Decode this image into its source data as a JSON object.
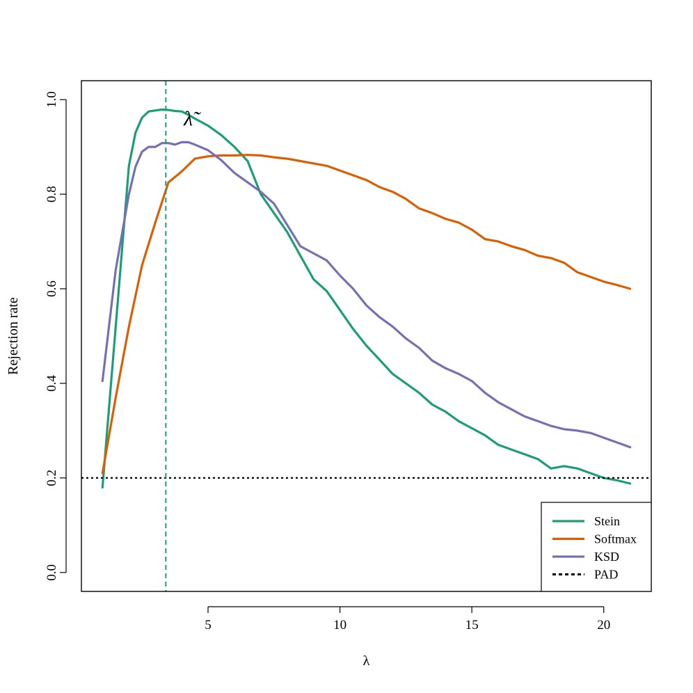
{
  "chart_data": {
    "type": "line",
    "title": "",
    "xlabel": "λ",
    "ylabel": "Rejection rate",
    "xlim": [
      0.2,
      21.8
    ],
    "ylim": [
      -0.04,
      1.04
    ],
    "xticks": [
      5,
      10,
      15,
      20
    ],
    "yticks": [
      0.0,
      0.2,
      0.4,
      0.6,
      0.8,
      1.0
    ],
    "xtick_labels": [
      "5",
      "10",
      "15",
      "20"
    ],
    "ytick_labels": [
      "0.0",
      "0.2",
      "0.4",
      "0.6",
      "0.8",
      "1.0"
    ],
    "grid": false,
    "legend_position": "bottom-right",
    "colors": {
      "Stein": "#1b9e77",
      "Softmax": "#d95f02",
      "KSD": "#7570b3",
      "PAD": "#000000"
    },
    "series": [
      {
        "name": "Stein",
        "x": [
          1.0,
          1.5,
          2.0,
          2.25,
          2.5,
          2.75,
          3.0,
          3.25,
          3.5,
          3.75,
          4.0,
          4.25,
          4.5,
          5.0,
          5.5,
          6.0,
          6.5,
          7.0,
          7.5,
          8.0,
          8.5,
          9.0,
          9.5,
          10.0,
          10.5,
          11.0,
          11.5,
          12.0,
          12.5,
          13.0,
          13.5,
          14.0,
          14.5,
          15.0,
          15.5,
          16.0,
          16.5,
          17.0,
          17.5,
          18.0,
          18.5,
          19.0,
          19.5,
          20.0,
          20.5,
          21.0
        ],
        "values": [
          0.18,
          0.52,
          0.86,
          0.93,
          0.962,
          0.975,
          0.977,
          0.979,
          0.978,
          0.976,
          0.975,
          0.968,
          0.96,
          0.945,
          0.925,
          0.9,
          0.87,
          0.8,
          0.76,
          0.72,
          0.67,
          0.62,
          0.595,
          0.555,
          0.515,
          0.48,
          0.45,
          0.42,
          0.4,
          0.38,
          0.355,
          0.34,
          0.32,
          0.305,
          0.29,
          0.27,
          0.26,
          0.25,
          0.24,
          0.22,
          0.225,
          0.22,
          0.21,
          0.2,
          0.195,
          0.188
        ]
      },
      {
        "name": "Softmax",
        "x": [
          1.0,
          1.5,
          2.0,
          2.5,
          3.0,
          3.5,
          4.0,
          4.5,
          5.0,
          5.5,
          6.0,
          6.5,
          7.0,
          7.5,
          8.0,
          8.5,
          9.0,
          9.5,
          10.0,
          10.5,
          11.0,
          11.5,
          12.0,
          12.5,
          13.0,
          13.5,
          14.0,
          14.5,
          15.0,
          15.5,
          16.0,
          16.5,
          17.0,
          17.5,
          18.0,
          18.5,
          19.0,
          19.5,
          20.0,
          20.5,
          21.0
        ],
        "values": [
          0.21,
          0.37,
          0.52,
          0.65,
          0.74,
          0.825,
          0.848,
          0.875,
          0.88,
          0.882,
          0.882,
          0.883,
          0.882,
          0.878,
          0.875,
          0.87,
          0.865,
          0.86,
          0.85,
          0.84,
          0.83,
          0.815,
          0.805,
          0.79,
          0.77,
          0.76,
          0.748,
          0.74,
          0.725,
          0.705,
          0.7,
          0.69,
          0.682,
          0.67,
          0.665,
          0.655,
          0.635,
          0.625,
          0.615,
          0.608,
          0.6
        ]
      },
      {
        "name": "KSD",
        "x": [
          1.0,
          1.5,
          2.0,
          2.25,
          2.5,
          2.75,
          3.0,
          3.25,
          3.5,
          3.75,
          4.0,
          4.25,
          4.5,
          5.0,
          5.5,
          6.0,
          6.5,
          7.0,
          7.5,
          8.0,
          8.5,
          9.0,
          9.5,
          10.0,
          10.5,
          11.0,
          11.5,
          12.0,
          12.5,
          13.0,
          13.5,
          14.0,
          14.5,
          15.0,
          15.5,
          16.0,
          16.5,
          17.0,
          17.5,
          18.0,
          18.5,
          19.0,
          19.5,
          20.0,
          20.5,
          21.0
        ],
        "values": [
          0.405,
          0.64,
          0.8,
          0.858,
          0.89,
          0.9,
          0.9,
          0.908,
          0.908,
          0.905,
          0.91,
          0.91,
          0.905,
          0.893,
          0.872,
          0.845,
          0.825,
          0.805,
          0.78,
          0.735,
          0.69,
          0.675,
          0.66,
          0.628,
          0.6,
          0.565,
          0.54,
          0.52,
          0.495,
          0.475,
          0.448,
          0.432,
          0.42,
          0.405,
          0.38,
          0.36,
          0.345,
          0.33,
          0.32,
          0.31,
          0.303,
          0.3,
          0.295,
          0.285,
          0.275,
          0.265
        ]
      },
      {
        "name": "PAD",
        "x": [
          0.2,
          21.8
        ],
        "values": [
          0.2,
          0.2
        ]
      }
    ],
    "annotations": [
      {
        "type": "vline",
        "x": 3.4,
        "color": "#1b9e77",
        "style": "dashed"
      },
      {
        "type": "text",
        "text": "λ̃",
        "x": 4.25,
        "y": 0.945
      }
    ]
  }
}
